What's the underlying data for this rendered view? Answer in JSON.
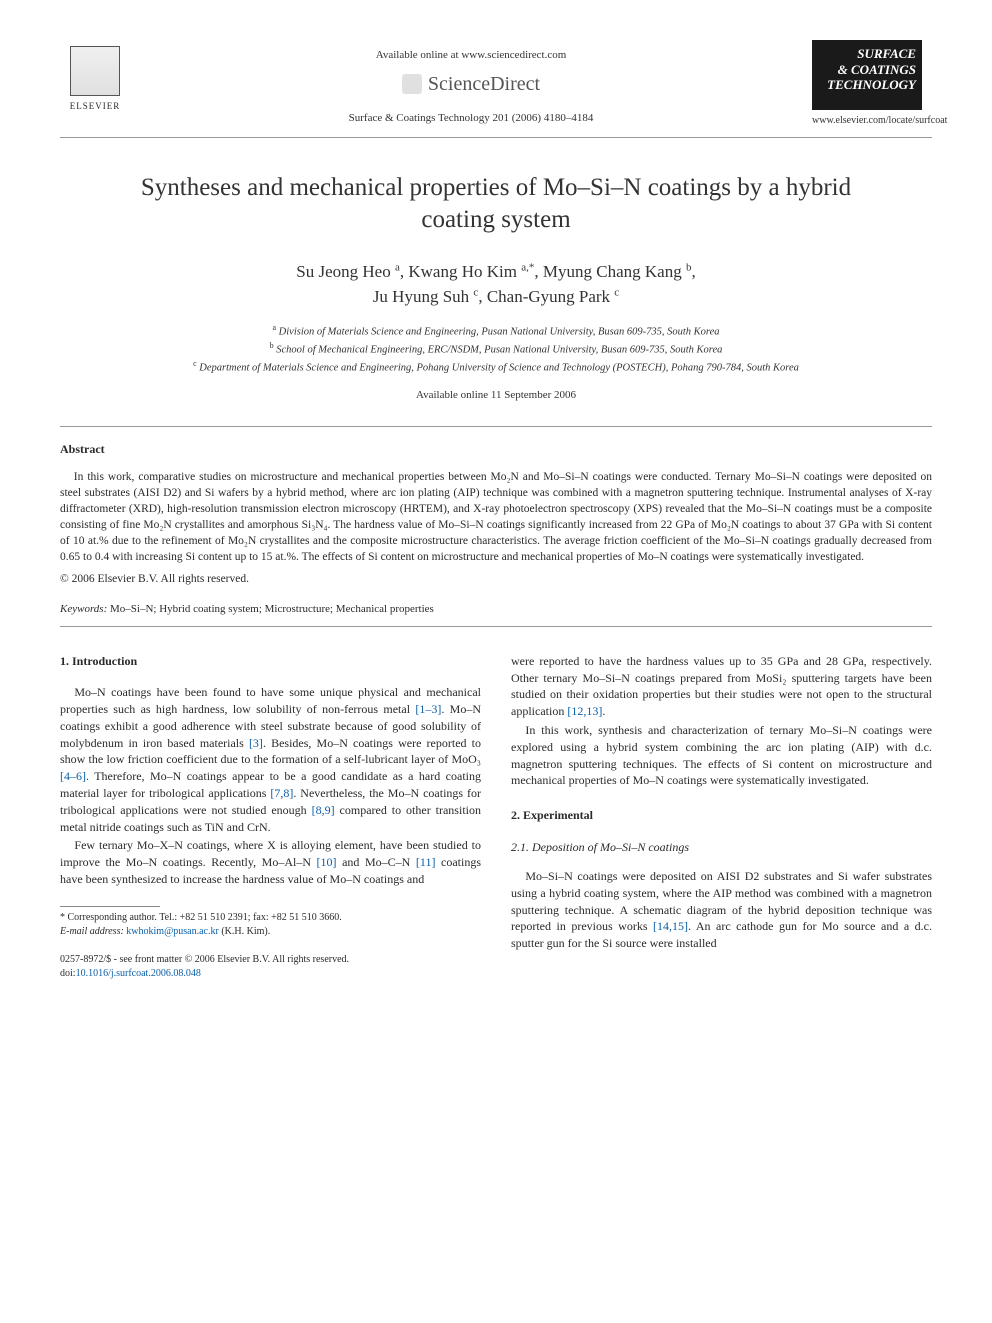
{
  "header": {
    "publisher_name": "ELSEVIER",
    "available_line": "Available online at www.sciencedirect.com",
    "sd_text": "ScienceDirect",
    "citation": "Surface & Coatings Technology 201 (2006) 4180–4184",
    "journal_line1": "SURFACE",
    "journal_line2": "& COATINGS",
    "journal_line3": "TECHNOLOGY",
    "journal_url": "www.elsevier.com/locate/surfcoat"
  },
  "title": "Syntheses and mechanical properties of Mo–Si–N coatings by a hybrid coating system",
  "authors_html": "Su Jeong Heo <sup>a</sup>, Kwang Ho Kim <sup>a,*</sup>, Myung Chang Kang <sup>b</sup>,<br>Ju Hyung Suh <sup>c</sup>, Chan-Gyung Park <sup>c</sup>",
  "affiliations": {
    "a": "Division of Materials Science and Engineering, Pusan National University, Busan 609-735, South Korea",
    "b": "School of Mechanical Engineering, ERC/NSDM, Pusan National University, Busan 609-735, South Korea",
    "c": "Department of Materials Science and Engineering, Pohang University of Science and Technology (POSTECH), Pohang 790-784, South Korea"
  },
  "online_date": "Available online 11 September 2006",
  "abstract": {
    "heading": "Abstract",
    "body": "In this work, comparative studies on microstructure and mechanical properties between Mo₂N and Mo–Si–N coatings were conducted. Ternary Mo–Si–N coatings were deposited on steel substrates (AISI D2) and Si wafers by a hybrid method, where arc ion plating (AIP) technique was combined with a magnetron sputtering technique. Instrumental analyses of X-ray diffractometer (XRD), high-resolution transmission electron microscopy (HRTEM), and X-ray photoelectron spectroscopy (XPS) revealed that the Mo–Si–N coatings must be a composite consisting of fine Mo₂N crystallites and amorphous Si₃N₄. The hardness value of Mo–Si–N coatings significantly increased from 22 GPa of Mo₂N coatings to about 37 GPa with Si content of 10 at.% due to the refinement of Mo₂N crystallites and the composite microstructure characteristics. The average friction coefficient of the Mo–Si–N coatings gradually decreased from 0.65 to 0.4 with increasing Si content up to 15 at.%. The effects of Si content on microstructure and mechanical properties of Mo–N coatings were systematically investigated.",
    "copyright": "© 2006 Elsevier B.V. All rights reserved."
  },
  "keywords": {
    "label": "Keywords:",
    "text": "Mo–Si–N; Hybrid coating system; Microstructure; Mechanical properties"
  },
  "sections": {
    "intro_heading": "1. Introduction",
    "intro_p1": "Mo–N coatings have been found to have some unique physical and mechanical properties such as high hardness, low solubility of non-ferrous metal [1–3]. Mo–N coatings exhibit a good adherence with steel substrate because of good solubility of molybdenum in iron based materials [3]. Besides, Mo–N coatings were reported to show the low friction coefficient due to the formation of a self-lubricant layer of MoO₃ [4–6]. Therefore, Mo–N coatings appear to be a good candidate as a hard coating material layer for tribological applications [7,8]. Nevertheless, the Mo–N coatings for tribological applications were not studied enough [8,9] compared to other transition metal nitride coatings such as TiN and CrN.",
    "intro_p2": "Few ternary Mo–X–N coatings, where X is alloying element, have been studied to improve the Mo–N coatings. Recently, Mo–Al–N [10] and Mo–C–N [11] coatings have been synthesized to increase the hardness value of Mo–N coatings and",
    "intro_p3": "were reported to have the hardness values up to 35 GPa and 28 GPa, respectively. Other ternary Mo–Si–N coatings prepared from MoSi₂ sputtering targets have been studied on their oxidation properties but their studies were not open to the structural application [12,13].",
    "intro_p4": "In this work, synthesis and characterization of ternary Mo–Si–N coatings were explored using a hybrid system combining the arc ion plating (AIP) with d.c. magnetron sputtering techniques. The effects of Si content on microstructure and mechanical properties of Mo–N coatings were systematically investigated.",
    "exp_heading": "2. Experimental",
    "exp_sub": "2.1. Deposition of Mo–Si–N coatings",
    "exp_p1": "Mo–Si–N coatings were deposited on AISI D2 substrates and Si wafer substrates using a hybrid coating system, where the AIP method was combined with a magnetron sputtering technique. A schematic diagram of the hybrid deposition technique was reported in previous works [14,15]. An arc cathode gun for Mo source and a d.c. sputter gun for the Si source were installed"
  },
  "footnote": {
    "corr": "* Corresponding author. Tel.: +82 51 510 2391; fax: +82 51 510 3660.",
    "email_label": "E-mail address:",
    "email": "kwhokim@pusan.ac.kr",
    "email_suffix": "(K.H. Kim)."
  },
  "bottom": {
    "issn": "0257-8972/$ - see front matter © 2006 Elsevier B.V. All rights reserved.",
    "doi_label": "doi:",
    "doi": "10.1016/j.surfcoat.2006.08.048"
  },
  "colors": {
    "link": "#0a5fa8",
    "text": "#2a2a2a",
    "rule": "#999999"
  },
  "typography": {
    "body_pt": 12,
    "title_pt": 25,
    "authors_pt": 17,
    "abstract_pt": 11.5,
    "footnote_pt": 10
  }
}
